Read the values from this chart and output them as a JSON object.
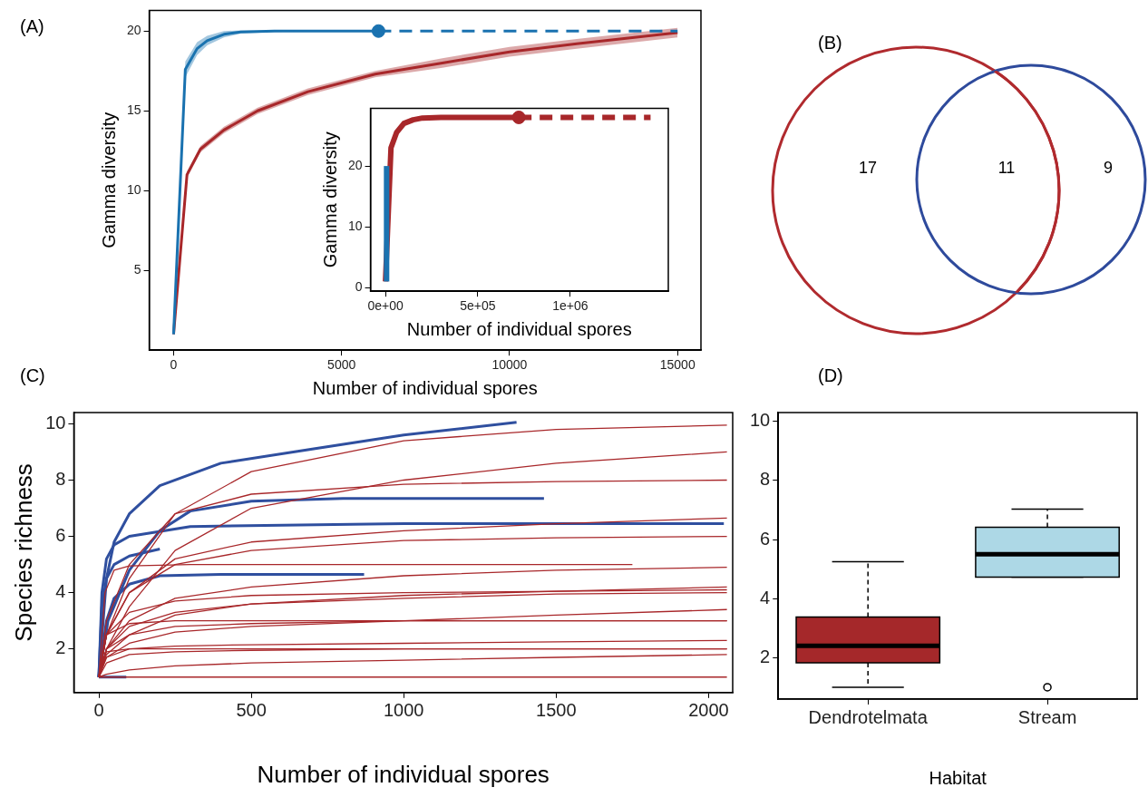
{
  "chart_data": [
    {
      "type": "line",
      "annotations": [
        "(A)"
      ],
      "xlabel": "Number of individual spores",
      "ylabel": "Gamma diversity",
      "xlim": [
        -724,
        15696
      ],
      "xticks": [
        0,
        5000,
        10000,
        15000
      ],
      "ylim": [
        0,
        21.3
      ],
      "yticks": [
        5,
        10,
        15,
        20
      ],
      "series": [
        {
          "type": "line",
          "color": "#1a72b0",
          "x": [
            1,
            350,
            700,
            1000,
            1500,
            2000,
            3000,
            4000,
            6100
          ],
          "values": [
            1,
            17.6,
            18.9,
            19.4,
            19.8,
            19.95,
            20,
            20,
            20
          ],
          "lower": [
            1,
            17.1,
            18.5,
            19.1,
            19.6,
            19.85,
            19.95,
            20,
            20
          ],
          "upper": [
            1,
            18.1,
            19.3,
            19.7,
            20,
            20.05,
            20.05,
            20,
            20
          ]
        },
        {
          "type": "line",
          "line_style": "dashed",
          "color": "#1a72b0",
          "x": [
            6100,
            15000
          ],
          "values": [
            20,
            20
          ]
        },
        {
          "type": "scatter",
          "marker": "circle",
          "color": "#1a72b0",
          "x": [
            6100
          ],
          "values": [
            20
          ]
        },
        {
          "type": "line",
          "color": "#a8272a",
          "x": [
            1,
            400,
            800,
            1500,
            2500,
            4000,
            6000,
            8000,
            10000,
            12000,
            15000
          ],
          "values": [
            1,
            11,
            12.6,
            13.8,
            15,
            16.2,
            17.3,
            18,
            18.7,
            19.2,
            19.9
          ],
          "lower": [
            1,
            10.8,
            12.4,
            13.6,
            14.8,
            16,
            17.1,
            17.7,
            18.4,
            18.9,
            19.6
          ],
          "upper": [
            1,
            11.2,
            12.8,
            14,
            15.2,
            16.4,
            17.5,
            18.3,
            19,
            19.5,
            20.2
          ]
        }
      ]
    },
    {
      "type": "line",
      "xlabel": "Number of individual spores",
      "ylabel": "Gamma diversity",
      "xlim": [
        -81000,
        1531000
      ],
      "xticks": [
        {
          "value": 0,
          "label": "0e+00"
        },
        {
          "value": 500000,
          "label": "5e+05"
        },
        {
          "value": 1000000,
          "label": "1e+06"
        }
      ],
      "ylim": [
        -0.6,
        29.5
      ],
      "yticks": [
        0,
        10,
        20
      ],
      "series": [
        {
          "type": "line",
          "color": "#1a72b0",
          "x": [
            6100,
            6100
          ],
          "values": [
            1,
            20
          ]
        },
        {
          "type": "line",
          "color": "#a8272a",
          "x": [
            1,
            30000,
            60000,
            100000,
            150000,
            200000,
            300000,
            400000,
            722000
          ],
          "values": [
            1,
            23,
            25.5,
            27,
            27.6,
            27.9,
            28,
            28,
            28
          ]
        },
        {
          "type": "line",
          "line_style": "dashed",
          "color": "#a8272a",
          "x": [
            722000,
            1435000
          ],
          "values": [
            28,
            28
          ]
        },
        {
          "type": "scatter",
          "marker": "circle",
          "color": "#a8272a",
          "x": [
            722000
          ],
          "values": [
            28
          ]
        }
      ]
    },
    {
      "type": "other",
      "annotations": [
        "(B)"
      ],
      "categories": [
        null,
        null,
        null
      ],
      "values": [
        17,
        11,
        9
      ],
      "data_labels": true,
      "colors": [
        "#b02a2e",
        "#b02a2e",
        "#2e4a9c"
      ]
    },
    {
      "type": "line",
      "annotations": [
        "(C)"
      ],
      "xlabel": "Number of individual spores",
      "ylabel": "Species richness",
      "xlim": [
        -82,
        2079
      ],
      "xticks": [
        0,
        500,
        1000,
        1500,
        2000
      ],
      "ylim": [
        0.45,
        10.4
      ],
      "yticks": [
        2,
        4,
        6,
        8,
        10
      ],
      "x": [
        0,
        25,
        100,
        250,
        500,
        1000,
        1500,
        2060
      ],
      "series": [
        {
          "color": "#a8272a",
          "values": [
            1,
            2.5,
            4.5,
            6.8,
            8.3,
            9.4,
            9.8,
            9.95
          ]
        },
        {
          "color": "#a8272a",
          "values": [
            1,
            2,
            3.5,
            5.5,
            7,
            8,
            8.6,
            9
          ]
        },
        {
          "color": "#a8272a",
          "values": [
            1,
            3,
            5,
            6.8,
            7.5,
            7.85,
            7.95,
            8
          ]
        },
        {
          "color": "#a8272a",
          "values": [
            1,
            2.5,
            4,
            5.2,
            5.8,
            6.2,
            6.45,
            6.65
          ]
        },
        {
          "color": "#a8272a",
          "values": [
            1,
            2.5,
            4,
            5,
            5.5,
            5.85,
            5.95,
            6
          ]
        },
        {
          "color": "#a8272a",
          "x": [
            0,
            20,
            50,
            100,
            300,
            1750
          ],
          "values": [
            1,
            4,
            4.8,
            4.95,
            5,
            5
          ]
        },
        {
          "color": "#a8272a",
          "values": [
            1,
            2,
            3,
            3.8,
            4.2,
            4.6,
            4.8,
            4.9
          ]
        },
        {
          "color": "#a8272a",
          "values": [
            1,
            1.8,
            2.5,
            3.2,
            3.6,
            3.9,
            4.05,
            4.2
          ]
        },
        {
          "color": "#a8272a",
          "values": [
            1,
            2.5,
            3.3,
            3.7,
            3.9,
            4,
            4.05,
            4.1
          ]
        },
        {
          "color": "#a8272a",
          "values": [
            1,
            2,
            2.8,
            3.3,
            3.6,
            3.8,
            3.95,
            4
          ]
        },
        {
          "color": "#a8272a",
          "values": [
            1,
            1.7,
            2.2,
            2.6,
            2.8,
            3,
            3.2,
            3.4
          ]
        },
        {
          "color": "#a8272a",
          "values": [
            1,
            2.5,
            2.9,
            3,
            3,
            3,
            3,
            3
          ]
        },
        {
          "color": "#a8272a",
          "values": [
            1,
            2,
            2.5,
            2.8,
            2.9,
            3,
            3,
            3
          ]
        },
        {
          "color": "#a8272a",
          "values": [
            1,
            1.7,
            2,
            2.1,
            2.15,
            2.2,
            2.25,
            2.3
          ]
        },
        {
          "color": "#a8272a",
          "values": [
            1,
            1.9,
            2,
            2,
            2,
            2,
            2,
            2
          ]
        },
        {
          "color": "#a8272a",
          "values": [
            1,
            1.5,
            1.8,
            1.9,
            1.95,
            2,
            2,
            2
          ]
        },
        {
          "color": "#a8272a",
          "values": [
            1,
            1.1,
            1.25,
            1.4,
            1.5,
            1.6,
            1.7,
            1.8
          ]
        },
        {
          "color": "#a8272a",
          "values": [
            1,
            1,
            1,
            1,
            1,
            1,
            1,
            1
          ]
        },
        {
          "color": "#2f4f9f",
          "x": [
            0,
            25,
            50,
            100,
            200,
            400,
            700,
            1000,
            1370
          ],
          "values": [
            1,
            4.5,
            5.8,
            6.8,
            7.8,
            8.6,
            9.1,
            9.6,
            10.05
          ]
        },
        {
          "color": "#2f4f9f",
          "x": [
            0,
            30,
            100,
            200,
            300,
            500,
            800,
            1460
          ],
          "values": [
            1,
            3,
            4.8,
            6.2,
            6.9,
            7.25,
            7.35,
            7.35
          ]
        },
        {
          "color": "#2f4f9f",
          "x": [
            0,
            10,
            25,
            50,
            100,
            300,
            1000,
            2050
          ],
          "values": [
            1,
            4,
            5.2,
            5.7,
            6,
            6.35,
            6.45,
            6.45
          ]
        },
        {
          "color": "#2f4f9f",
          "x": [
            0,
            10,
            25,
            50,
            100,
            200
          ],
          "values": [
            1,
            3.5,
            4.5,
            5,
            5.3,
            5.55
          ]
        },
        {
          "color": "#2f4f9f",
          "x": [
            0,
            25,
            50,
            100,
            200,
            400,
            870
          ],
          "values": [
            1,
            3,
            3.8,
            4.3,
            4.6,
            4.65,
            4.65
          ]
        },
        {
          "color": "#2f4f9f",
          "x": [
            0,
            90
          ],
          "values": [
            1,
            1
          ]
        }
      ]
    },
    {
      "type": "box",
      "annotations": [
        "(D)"
      ],
      "xlabel": "Habitat",
      "categories": [
        "Dendrotelmata",
        "Stream"
      ],
      "colors": [
        "#a5282a",
        "#add8e6"
      ],
      "ylim": [
        0.6,
        10.3
      ],
      "yticks": [
        2,
        4,
        6,
        8,
        10
      ],
      "boxes": [
        {
          "low": 1,
          "q1": 1.83,
          "median": 2.4,
          "q3": 3.38,
          "high": 5.25
        },
        {
          "low": 4.73,
          "q1": 4.73,
          "median": 5.5,
          "q3": 6.42,
          "high": 7.03,
          "outliers": [
            1
          ]
        }
      ]
    }
  ]
}
